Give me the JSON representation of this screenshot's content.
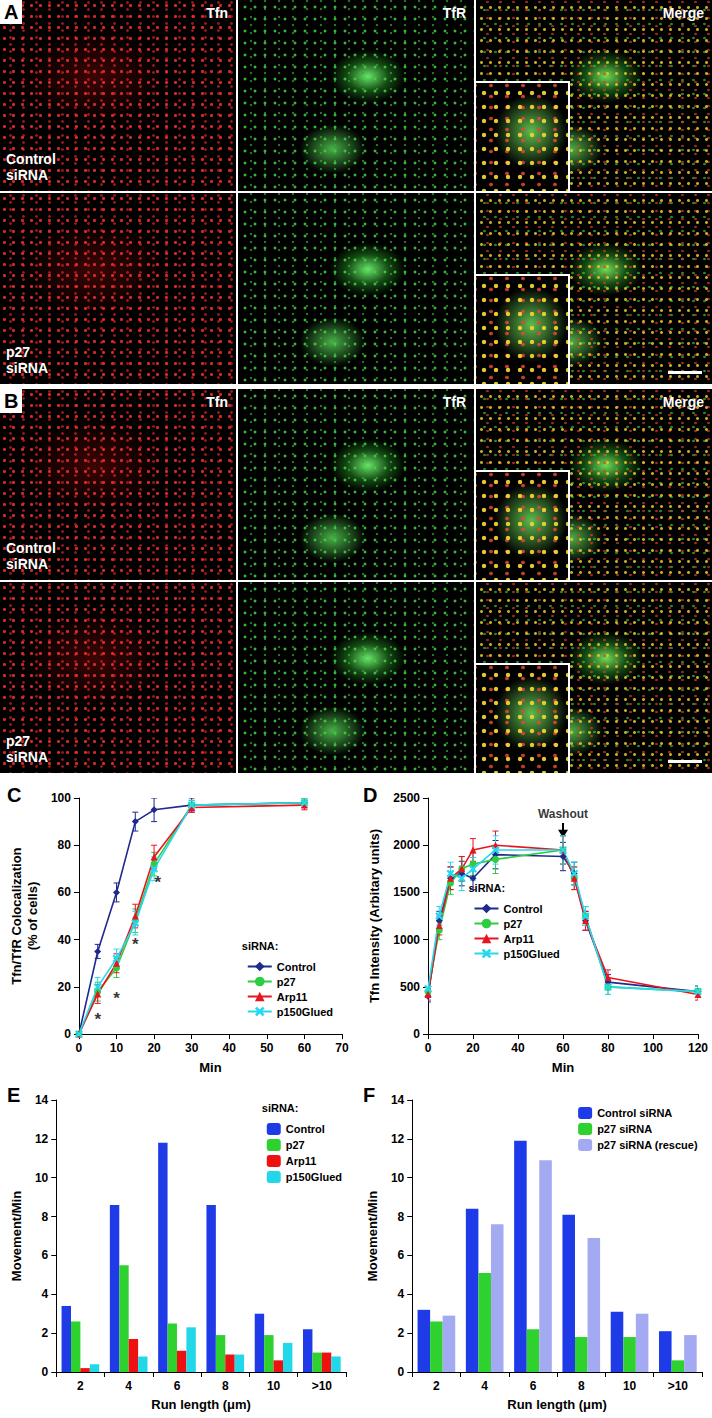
{
  "images": [
    {
      "panel": "A",
      "columns": [
        "Tfn",
        "TfR",
        "Merge"
      ],
      "rows": [
        "Control\nsiRNA",
        "p27\nsiRNA"
      ]
    },
    {
      "panel": "B",
      "columns": [
        "Tfn",
        "TfR",
        "Merge"
      ],
      "rows": [
        "Control\nsiRNA",
        "p27\nsiRNA"
      ]
    }
  ],
  "chart_data": [
    {
      "panel": "C",
      "type": "line",
      "x_label": "Min",
      "y_label": "Tfn/TfR Colocalization\n(% of cells)",
      "x": [
        0,
        5,
        10,
        15,
        20,
        30,
        60
      ],
      "xlim": [
        0,
        70
      ],
      "xticks": [
        0,
        10,
        20,
        30,
        40,
        50,
        60,
        70
      ],
      "ylim": [
        0,
        100
      ],
      "yticks": [
        0,
        20,
        40,
        60,
        80,
        100
      ],
      "grid": false,
      "legend": "lower right",
      "legend_title": "siRNA:",
      "series": [
        {
          "name": "Control",
          "color": "#1f2a8c",
          "marker": "diamond",
          "values": [
            0,
            35,
            60,
            90,
            95,
            97,
            98
          ],
          "errors": [
            0,
            3,
            4,
            4,
            5,
            3,
            2
          ]
        },
        {
          "name": "p27",
          "color": "#2ecc40",
          "marker": "circle",
          "values": [
            0,
            18,
            28,
            48,
            72,
            97,
            98
          ],
          "errors": [
            0,
            4,
            4,
            5,
            5,
            2,
            2
          ]
        },
        {
          "name": "Arp11",
          "color": "#e8141e",
          "marker": "triangle",
          "values": [
            0,
            17,
            30,
            50,
            75,
            96,
            97
          ],
          "errors": [
            0,
            4,
            4,
            5,
            5,
            2,
            2
          ]
        },
        {
          "name": "p150Glued",
          "color": "#27d7ee",
          "marker": "x",
          "values": [
            0,
            20,
            32,
            47,
            70,
            97,
            98
          ],
          "errors": [
            0,
            4,
            4,
            5,
            5,
            2,
            2
          ]
        }
      ],
      "annotations": [
        {
          "x": 5,
          "y": 6,
          "text": "*"
        },
        {
          "x": 10,
          "y": 15,
          "text": "*"
        },
        {
          "x": 15,
          "y": 38,
          "text": "*"
        },
        {
          "x": 21,
          "y": 64,
          "text": "*"
        }
      ]
    },
    {
      "panel": "D",
      "type": "line",
      "x_label": "Min",
      "y_label": "Tfn Intensity (Arbitary units)",
      "x": [
        0,
        5,
        10,
        15,
        20,
        30,
        60,
        65,
        70,
        80,
        120
      ],
      "xlim": [
        0,
        120
      ],
      "xticks": [
        0,
        20,
        40,
        60,
        80,
        100,
        120
      ],
      "ylim": [
        0,
        2500
      ],
      "yticks": [
        0,
        500,
        1000,
        1500,
        2000,
        2500
      ],
      "grid": false,
      "legend": "center",
      "legend_title": "siRNA:",
      "series": [
        {
          "name": "Control",
          "color": "#1f2a8c",
          "marker": "diamond",
          "values": [
            400,
            1200,
            1650,
            1700,
            1650,
            1900,
            1880,
            1700,
            1200,
            550,
            450
          ],
          "errors": [
            60,
            100,
            120,
            130,
            120,
            150,
            150,
            120,
            100,
            80,
            60
          ]
        },
        {
          "name": "p27",
          "color": "#2ecc40",
          "marker": "circle",
          "values": [
            450,
            1100,
            1600,
            1750,
            1800,
            1850,
            1950,
            1650,
            1250,
            500,
            450
          ],
          "errors": [
            60,
            100,
            120,
            130,
            120,
            150,
            150,
            120,
            100,
            80,
            60
          ]
        },
        {
          "name": "Arp11",
          "color": "#e8141e",
          "marker": "triangle",
          "values": [
            420,
            1150,
            1650,
            1750,
            1950,
            2000,
            1950,
            1650,
            1200,
            600,
            420
          ],
          "errors": [
            60,
            100,
            120,
            130,
            120,
            150,
            150,
            120,
            100,
            80,
            60
          ]
        },
        {
          "name": "p150Glued",
          "color": "#27d7ee",
          "marker": "x",
          "values": [
            480,
            1250,
            1700,
            1650,
            1750,
            1950,
            1950,
            1700,
            1250,
            500,
            450
          ],
          "errors": [
            60,
            100,
            120,
            130,
            120,
            150,
            150,
            120,
            100,
            80,
            60
          ]
        }
      ],
      "annotations": [
        {
          "x": 60,
          "y": 2330,
          "text": "Washout",
          "arrow_to": 2080
        }
      ]
    },
    {
      "panel": "E",
      "type": "bar",
      "x_label": "Run length (μm)",
      "y_label": "Movement/Min",
      "categories": [
        "2",
        "4",
        "6",
        "8",
        "10",
        ">10"
      ],
      "ylim": [
        0,
        14
      ],
      "yticks": [
        0,
        2,
        4,
        6,
        8,
        10,
        12,
        14
      ],
      "grid": false,
      "legend": "upper right",
      "legend_title": "siRNA:",
      "series": [
        {
          "name": "Control",
          "color": "#1f3be8",
          "values": [
            3.4,
            8.6,
            11.8,
            8.6,
            3.0,
            2.2
          ]
        },
        {
          "name": "p27",
          "color": "#2ed12e",
          "values": [
            2.6,
            5.5,
            2.5,
            1.9,
            1.9,
            1.0
          ]
        },
        {
          "name": "Arp11",
          "color": "#ee1111",
          "values": [
            0.2,
            1.7,
            1.1,
            0.9,
            0.6,
            1.0
          ]
        },
        {
          "name": "p150Glued",
          "color": "#22d8e8",
          "values": [
            0.4,
            0.8,
            2.3,
            0.9,
            1.5,
            0.8
          ]
        }
      ]
    },
    {
      "panel": "F",
      "type": "bar",
      "x_label": "Run length (μm)",
      "y_label": "Movement/Min",
      "categories": [
        "2",
        "4",
        "6",
        "8",
        "10",
        ">10"
      ],
      "ylim": [
        0,
        14
      ],
      "yticks": [
        0,
        2,
        4,
        6,
        8,
        10,
        12,
        14
      ],
      "grid": false,
      "legend": "upper right",
      "series": [
        {
          "name": "Control siRNA",
          "color": "#1f3be8",
          "values": [
            3.2,
            8.4,
            11.9,
            8.1,
            3.1,
            2.1
          ]
        },
        {
          "name": "p27 siRNA",
          "color": "#2ed12e",
          "values": [
            2.6,
            5.1,
            2.2,
            1.8,
            1.8,
            0.6
          ]
        },
        {
          "name": "p27 siRNA (rescue)",
          "color": "#a3aaf2",
          "values": [
            2.9,
            7.6,
            10.9,
            6.9,
            3.0,
            1.9
          ]
        }
      ]
    }
  ]
}
